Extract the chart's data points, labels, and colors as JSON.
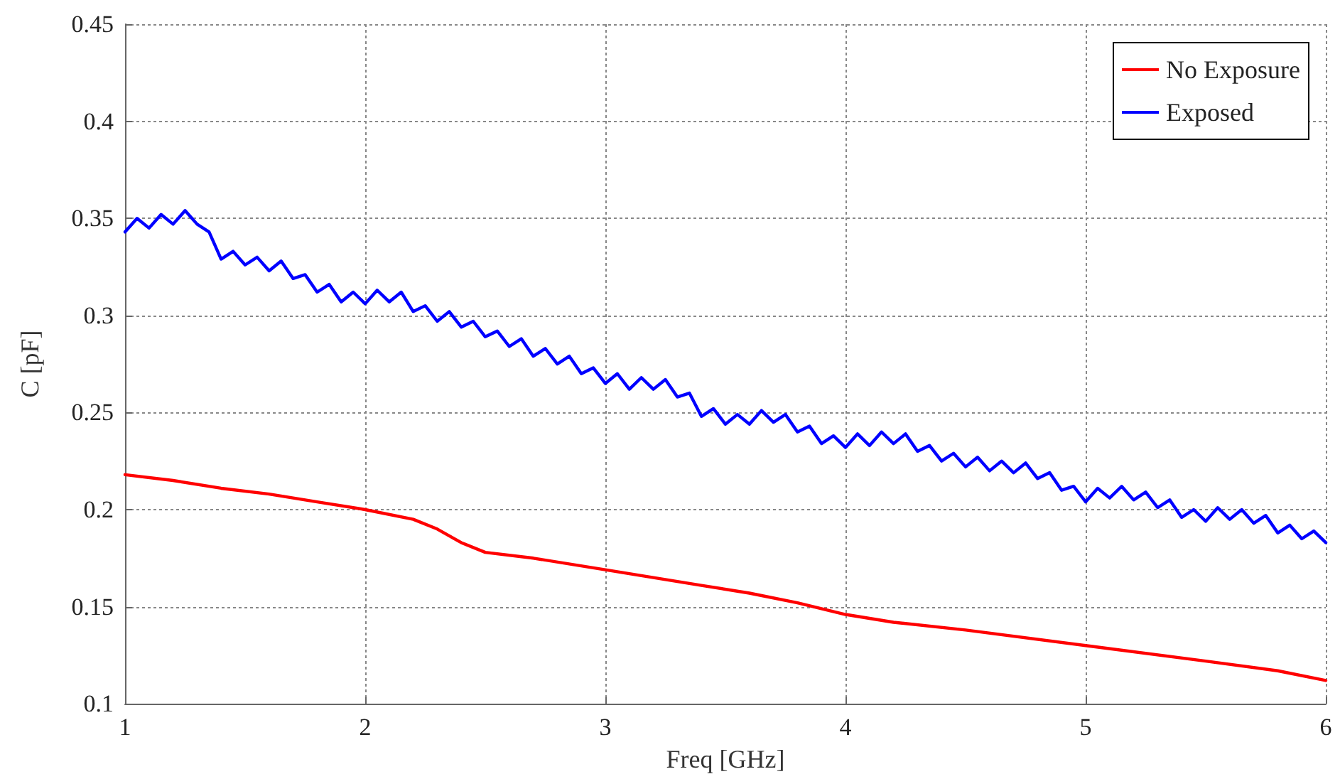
{
  "chart_data": {
    "type": "line",
    "xlabel": "Freq [GHz]",
    "ylabel": "C [pF]",
    "xlim": [
      1,
      6
    ],
    "xticks": [
      1,
      2,
      3,
      4,
      5,
      6
    ],
    "ylim": [
      0.1,
      0.45
    ],
    "yticks": [
      0.1,
      0.15,
      0.2,
      0.25,
      0.3,
      0.35,
      0.4,
      0.45
    ],
    "grid": true,
    "legend": "top right",
    "marker": "none",
    "line_style": "solid",
    "series": [
      {
        "name": "No Exposure",
        "color": "#ff0000",
        "x": [
          1.0,
          1.2,
          1.4,
          1.6,
          1.8,
          2.0,
          2.2,
          2.3,
          2.4,
          2.5,
          2.7,
          3.0,
          3.2,
          3.4,
          3.6,
          3.8,
          4.0,
          4.2,
          4.5,
          5.0,
          5.5,
          5.8,
          6.0
        ],
        "values": [
          0.218,
          0.215,
          0.211,
          0.208,
          0.204,
          0.2,
          0.195,
          0.19,
          0.183,
          0.178,
          0.175,
          0.169,
          0.165,
          0.161,
          0.157,
          0.152,
          0.146,
          0.142,
          0.138,
          0.13,
          0.122,
          0.117,
          0.112
        ]
      },
      {
        "name": "Exposed",
        "color": "#0000ff",
        "x": [
          1.0,
          1.05,
          1.1,
          1.15,
          1.2,
          1.25,
          1.3,
          1.35,
          1.4,
          1.45,
          1.5,
          1.55,
          1.6,
          1.65,
          1.7,
          1.75,
          1.8,
          1.85,
          1.9,
          1.95,
          2.0,
          2.05,
          2.1,
          2.15,
          2.2,
          2.25,
          2.3,
          2.35,
          2.4,
          2.45,
          2.5,
          2.55,
          2.6,
          2.65,
          2.7,
          2.75,
          2.8,
          2.85,
          2.9,
          2.95,
          3.0,
          3.05,
          3.1,
          3.15,
          3.2,
          3.25,
          3.3,
          3.35,
          3.4,
          3.45,
          3.5,
          3.55,
          3.6,
          3.65,
          3.7,
          3.75,
          3.8,
          3.85,
          3.9,
          3.95,
          4.0,
          4.05,
          4.1,
          4.15,
          4.2,
          4.25,
          4.3,
          4.35,
          4.4,
          4.45,
          4.5,
          4.55,
          4.6,
          4.65,
          4.7,
          4.75,
          4.8,
          4.85,
          4.9,
          4.95,
          5.0,
          5.05,
          5.1,
          5.15,
          5.2,
          5.25,
          5.3,
          5.35,
          5.4,
          5.45,
          5.5,
          5.55,
          5.6,
          5.65,
          5.7,
          5.75,
          5.8,
          5.85,
          5.9,
          5.95,
          6.0
        ],
        "values": [
          0.343,
          0.35,
          0.345,
          0.352,
          0.347,
          0.354,
          0.347,
          0.343,
          0.329,
          0.333,
          0.326,
          0.33,
          0.323,
          0.328,
          0.319,
          0.321,
          0.312,
          0.316,
          0.307,
          0.312,
          0.306,
          0.313,
          0.307,
          0.312,
          0.302,
          0.305,
          0.297,
          0.302,
          0.294,
          0.297,
          0.289,
          0.292,
          0.284,
          0.288,
          0.279,
          0.283,
          0.275,
          0.279,
          0.27,
          0.273,
          0.265,
          0.27,
          0.262,
          0.268,
          0.262,
          0.267,
          0.258,
          0.26,
          0.248,
          0.252,
          0.244,
          0.249,
          0.244,
          0.251,
          0.245,
          0.249,
          0.24,
          0.243,
          0.234,
          0.238,
          0.232,
          0.239,
          0.233,
          0.24,
          0.234,
          0.239,
          0.23,
          0.233,
          0.225,
          0.229,
          0.222,
          0.227,
          0.22,
          0.225,
          0.219,
          0.224,
          0.216,
          0.219,
          0.21,
          0.212,
          0.204,
          0.211,
          0.206,
          0.212,
          0.205,
          0.209,
          0.201,
          0.205,
          0.196,
          0.2,
          0.194,
          0.201,
          0.195,
          0.2,
          0.193,
          0.197,
          0.188,
          0.192,
          0.185,
          0.189,
          0.183
        ]
      }
    ]
  }
}
